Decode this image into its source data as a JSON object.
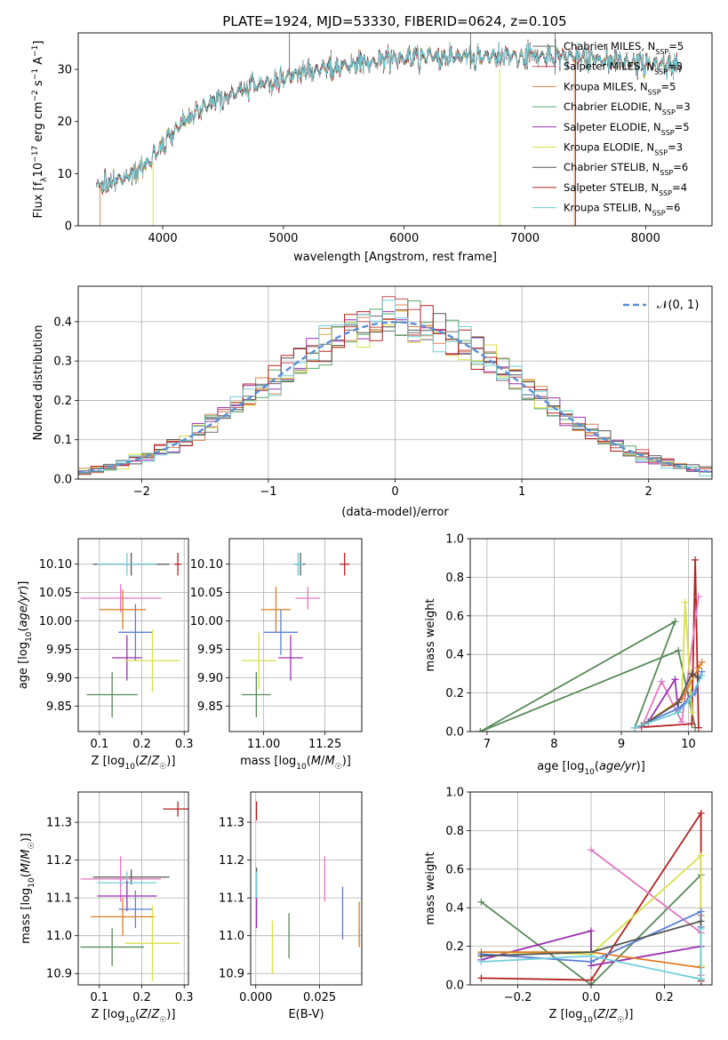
{
  "figure_title": "PLATE=1924, MJD=53330, FIBERID=0624, z=0.105",
  "colors": {
    "Chabrier MILES": "#6a6a6a",
    "Salpeter MILES": "#c44e52",
    "Kroupa MILES": "#dd8452",
    "Chabrier ELODIE": "#55a868",
    "Salpeter ELODIE": "#9b30b0",
    "Kroupa ELODIE": "#d8e04a",
    "Chabrier STELIB": "#555555",
    "Salpeter STELIB": "#b22222",
    "Kroupa STELIB": "#6fcfd8",
    "extra_pink": "#e377c2",
    "extra_blue": "#5b7fd6",
    "extra_orange": "#e07b20",
    "extra_green": "#5a8a5a",
    "normal_curve": "#5b8fd6"
  },
  "chart_data": [
    {
      "id": "spectrum",
      "type": "line",
      "title": "PLATE=1924, MJD=53330, FIBERID=0624, z=0.105",
      "xlabel": "wavelength [Angstrom, rest frame]",
      "ylabel": "Flux [f_λ 10^-17 erg cm^-2 s^-1 A^-1]",
      "xlim": [
        3300,
        8550
      ],
      "ylim": [
        0,
        37
      ],
      "xticks": [
        4000,
        5000,
        6000,
        7000,
        8000
      ],
      "yticks": [
        0,
        10,
        20,
        30
      ],
      "grid": false,
      "legend_position": "top-right",
      "legend": [
        {
          "label": "Chabrier MILES, N",
          "sub": "SSP",
          "suffix": "=5"
        },
        {
          "label": "Salpeter MILES, N",
          "sub": "SSP",
          "suffix": "=3"
        },
        {
          "label": "Kroupa MILES, N",
          "sub": "SSP",
          "suffix": "=5"
        },
        {
          "label": "Chabrier ELODIE, N",
          "sub": "SSP",
          "suffix": "=3"
        },
        {
          "label": "Salpeter ELODIE, N",
          "sub": "SSP",
          "suffix": "=5"
        },
        {
          "label": "Kroupa ELODIE, N",
          "sub": "SSP",
          "suffix": "=3"
        },
        {
          "label": "Chabrier STELIB, N",
          "sub": "SSP",
          "suffix": "=6"
        },
        {
          "label": "Salpeter STELIB, N",
          "sub": "SSP",
          "suffix": "=4"
        },
        {
          "label": "Kroupa STELIB, N",
          "sub": "SSP",
          "suffix": "=6"
        }
      ],
      "continuum": {
        "x": [
          3450,
          3600,
          3800,
          3900,
          4000,
          4100,
          4200,
          4400,
          4600,
          4800,
          5000,
          5200,
          5400,
          5600,
          5800,
          6000,
          6200,
          6400,
          6600,
          6800,
          7000,
          7200,
          7400,
          7600,
          7800,
          8000,
          8200,
          8300
        ],
        "y": [
          7.5,
          8.5,
          10.5,
          12.5,
          15.5,
          18.5,
          20.5,
          23.5,
          25.5,
          27,
          28.5,
          29.5,
          30.5,
          31,
          31.5,
          32,
          32.5,
          32.5,
          32.5,
          32.5,
          32.5,
          32.5,
          32.5,
          32,
          31.5,
          31,
          31,
          30.5
        ]
      },
      "spikes": [
        {
          "x": 3480,
          "from": 0,
          "to": 8,
          "series": 2
        },
        {
          "x": 3920,
          "from": 0,
          "to": 12,
          "series": 5
        },
        {
          "x": 5050,
          "from": 29,
          "to": 37,
          "series": 0
        },
        {
          "x": 6550,
          "from": 30,
          "to": 37,
          "series": 0
        },
        {
          "x": 6790,
          "from": 0,
          "to": 30,
          "series": 5
        },
        {
          "x": 7250,
          "from": 29,
          "to": 37,
          "series": 0
        },
        {
          "x": 7410,
          "from": 0,
          "to": 32,
          "series": 2
        },
        {
          "x": 7420,
          "from": 0,
          "to": 32,
          "series": 7
        }
      ]
    },
    {
      "id": "residuals",
      "type": "histogram",
      "xlabel": "(data-model)/error",
      "ylabel": "Normed distribution",
      "xlim": [
        -2.5,
        2.5
      ],
      "ylim": [
        0,
        0.49
      ],
      "xticks": [
        -2,
        -1,
        0,
        1,
        2
      ],
      "yticks": [
        0.0,
        0.1,
        0.2,
        0.3,
        0.4
      ],
      "grid": true,
      "bins": 50,
      "legend_position": "top-right",
      "legend": [
        {
          "label": "𝒩(0, 1)"
        }
      ],
      "curve": "standard normal N(0,1)"
    },
    {
      "id": "age_vs_Z",
      "type": "errorbar",
      "xlabel": "Z [log10(Z/Z☉)]",
      "ylabel": "age  [log10(age/yr)]",
      "xlim": [
        0.05,
        0.31
      ],
      "ylim": [
        9.805,
        10.145
      ],
      "xticks": [
        0.1,
        0.2,
        0.3
      ],
      "yticks": [
        9.85,
        9.9,
        9.95,
        10.0,
        10.05,
        10.1
      ],
      "grid": true,
      "points": [
        {
          "x": 0.175,
          "y": 10.1,
          "xerr": 0.09,
          "yerr": 0.02,
          "color": "#555555"
        },
        {
          "x": 0.285,
          "y": 10.1,
          "xerr": 0.008,
          "yerr": 0.02,
          "color": "#b22222"
        },
        {
          "x": 0.165,
          "y": 10.1,
          "xerr": 0.07,
          "yerr": 0.02,
          "color": "#6fcfd8"
        },
        {
          "x": 0.15,
          "y": 10.04,
          "xerr": 0.095,
          "yerr": 0.025,
          "color": "#e377c2"
        },
        {
          "x": 0.155,
          "y": 10.02,
          "xerr": 0.055,
          "yerr": 0.035,
          "color": "#e07b20"
        },
        {
          "x": 0.185,
          "y": 9.98,
          "xerr": 0.04,
          "yerr": 0.05,
          "color": "#5b7fd6"
        },
        {
          "x": 0.165,
          "y": 9.935,
          "xerr": 0.035,
          "yerr": 0.04,
          "color": "#9b30b0"
        },
        {
          "x": 0.225,
          "y": 9.93,
          "xerr": 0.065,
          "yerr": 0.055,
          "color": "#d8e04a"
        },
        {
          "x": 0.13,
          "y": 9.87,
          "xerr": 0.06,
          "yerr": 0.04,
          "color": "#5a8a5a"
        }
      ]
    },
    {
      "id": "age_vs_mass",
      "type": "errorbar",
      "xlabel": "mass [log10(M/M☉)]",
      "ylabel": "",
      "xlim": [
        10.86,
        11.4
      ],
      "ylim": [
        9.805,
        10.145
      ],
      "xticks": [
        11.0,
        11.25
      ],
      "yticks": [
        9.85,
        9.9,
        9.95,
        10.0,
        10.05,
        10.1
      ],
      "grid": true,
      "points": [
        {
          "x": 11.15,
          "y": 10.1,
          "xerr": 0.02,
          "yerr": 0.02,
          "color": "#555555"
        },
        {
          "x": 11.33,
          "y": 10.1,
          "xerr": 0.02,
          "yerr": 0.02,
          "color": "#b22222"
        },
        {
          "x": 11.14,
          "y": 10.1,
          "xerr": 0.02,
          "yerr": 0.02,
          "color": "#6fcfd8"
        },
        {
          "x": 11.18,
          "y": 10.04,
          "xerr": 0.05,
          "yerr": 0.02,
          "color": "#e377c2"
        },
        {
          "x": 11.05,
          "y": 10.02,
          "xerr": 0.06,
          "yerr": 0.04,
          "color": "#e07b20"
        },
        {
          "x": 11.07,
          "y": 9.98,
          "xerr": 0.07,
          "yerr": 0.04,
          "color": "#5b7fd6"
        },
        {
          "x": 11.11,
          "y": 9.935,
          "xerr": 0.05,
          "yerr": 0.04,
          "color": "#9b30b0"
        },
        {
          "x": 10.98,
          "y": 9.93,
          "xerr": 0.07,
          "yerr": 0.05,
          "color": "#d8e04a"
        },
        {
          "x": 10.97,
          "y": 9.87,
          "xerr": 0.06,
          "yerr": 0.04,
          "color": "#5a8a5a"
        }
      ]
    },
    {
      "id": "massweight_vs_age",
      "type": "line",
      "xlabel": "age  [log10(age/yr)]",
      "ylabel": "mass weight",
      "xlim": [
        6.75,
        10.35
      ],
      "ylim": [
        0,
        1.0
      ],
      "xticks": [
        7,
        8,
        9,
        10
      ],
      "yticks": [
        0.0,
        0.2,
        0.4,
        0.6,
        0.8,
        1.0
      ],
      "grid": true,
      "series": [
        {
          "color": "#5a8a5a",
          "x": [
            9.2,
            9.8,
            6.9,
            9.85,
            10.1
          ],
          "y": [
            0.02,
            0.57,
            0.0,
            0.42,
            0.02
          ]
        },
        {
          "color": "#b22222",
          "x": [
            9.2,
            10.05,
            10.1,
            10.15
          ],
          "y": [
            0.02,
            0.04,
            0.89,
            0.02
          ]
        },
        {
          "color": "#e377c2",
          "x": [
            9.3,
            9.6,
            9.9,
            10.15
          ],
          "y": [
            0.02,
            0.26,
            0.05,
            0.7
          ]
        },
        {
          "color": "#9b30b0",
          "x": [
            9.4,
            9.8,
            9.85,
            10.05
          ],
          "y": [
            0.05,
            0.27,
            0.1,
            0.2
          ]
        },
        {
          "color": "#d8e04a",
          "x": [
            9.3,
            9.9,
            9.95,
            10.05
          ],
          "y": [
            0.03,
            0.17,
            0.67,
            0.1
          ]
        },
        {
          "color": "#e07b20",
          "x": [
            9.4,
            9.9,
            10.15,
            10.2
          ],
          "y": [
            0.05,
            0.17,
            0.33,
            0.36
          ]
        },
        {
          "color": "#5b7fd6",
          "x": [
            9.4,
            9.85,
            10.1,
            10.2
          ],
          "y": [
            0.05,
            0.12,
            0.2,
            0.31
          ]
        },
        {
          "color": "#555555",
          "x": [
            9.3,
            9.85,
            10.05,
            10.15
          ],
          "y": [
            0.03,
            0.15,
            0.3,
            0.28
          ]
        },
        {
          "color": "#6fcfd8",
          "x": [
            9.2,
            9.85,
            10.0,
            10.2
          ],
          "y": [
            0.02,
            0.1,
            0.16,
            0.29
          ]
        }
      ]
    },
    {
      "id": "mass_vs_Z",
      "type": "errorbar",
      "xlabel": "Z [log10(Z/Z☉)]",
      "ylabel": "mass [log10(M/M☉)]",
      "xlim": [
        0.05,
        0.31
      ],
      "ylim": [
        10.87,
        11.38
      ],
      "xticks": [
        0.1,
        0.2,
        0.3
      ],
      "yticks": [
        10.9,
        11.0,
        11.1,
        11.2,
        11.3
      ],
      "grid": true,
      "points": [
        {
          "x": 0.285,
          "y": 11.335,
          "xerr": 0.035,
          "yerr": 0.02,
          "color": "#b22222"
        },
        {
          "x": 0.175,
          "y": 11.155,
          "xerr": 0.09,
          "yerr": 0.02,
          "color": "#555555"
        },
        {
          "x": 0.15,
          "y": 11.15,
          "xerr": 0.095,
          "yerr": 0.06,
          "color": "#e377c2"
        },
        {
          "x": 0.165,
          "y": 11.14,
          "xerr": 0.07,
          "yerr": 0.03,
          "color": "#6fcfd8"
        },
        {
          "x": 0.165,
          "y": 11.105,
          "xerr": 0.07,
          "yerr": 0.04,
          "color": "#9b30b0"
        },
        {
          "x": 0.185,
          "y": 11.07,
          "xerr": 0.04,
          "yerr": 0.05,
          "color": "#5b7fd6"
        },
        {
          "x": 0.155,
          "y": 11.05,
          "xerr": 0.075,
          "yerr": 0.05,
          "color": "#e07b20"
        },
        {
          "x": 0.225,
          "y": 10.98,
          "xerr": 0.065,
          "yerr": 0.1,
          "color": "#d8e04a"
        },
        {
          "x": 0.13,
          "y": 10.97,
          "xerr": 0.075,
          "yerr": 0.05,
          "color": "#5a8a5a"
        }
      ]
    },
    {
      "id": "mass_vs_ebv",
      "type": "errorbar",
      "xlabel": "E(B-V)",
      "ylabel": "",
      "xlim": [
        -0.002,
        0.0415
      ],
      "ylim": [
        10.87,
        11.38
      ],
      "xticks": [
        0.0,
        0.025
      ],
      "yticks": [
        10.9,
        11.0,
        11.1,
        11.2,
        11.3
      ],
      "grid": true,
      "points": [
        {
          "x": 0.0003,
          "y": 11.33,
          "yerr": 0.025,
          "color": "#b22222"
        },
        {
          "x": 0.0003,
          "y": 11.14,
          "yerr": 0.04,
          "color": "#555555"
        },
        {
          "x": 0.0003,
          "y": 11.1,
          "yerr": 0.07,
          "color": "#6fcfd8"
        },
        {
          "x": 0.0003,
          "y": 11.06,
          "yerr": 0.04,
          "color": "#9b30b0"
        },
        {
          "x": 0.0065,
          "y": 10.97,
          "yerr": 0.07,
          "color": "#d8e04a"
        },
        {
          "x": 0.013,
          "y": 11.0,
          "yerr": 0.06,
          "color": "#5a8a5a"
        },
        {
          "x": 0.027,
          "y": 11.15,
          "yerr": 0.06,
          "color": "#e377c2"
        },
        {
          "x": 0.034,
          "y": 11.06,
          "yerr": 0.07,
          "color": "#5b7fd6"
        },
        {
          "x": 0.0405,
          "y": 11.03,
          "yerr": 0.06,
          "color": "#e07b20"
        }
      ]
    },
    {
      "id": "massweight_vs_Z",
      "type": "line",
      "xlabel": "Z [log10(Z/Z☉)]",
      "ylabel": "mass weight",
      "xlim": [
        -0.33,
        0.33
      ],
      "ylim": [
        0,
        1.0
      ],
      "xticks": [
        -0.2,
        0.0,
        0.2
      ],
      "yticks": [
        0.0,
        0.2,
        0.4,
        0.6,
        0.8,
        1.0
      ],
      "grid": true,
      "series": [
        {
          "color": "#5a8a5a",
          "x": [
            -0.3,
            0.0,
            0.3
          ],
          "y": [
            0.43,
            0.0,
            0.57
          ]
        },
        {
          "color": "#b22222",
          "x": [
            -0.3,
            0.0,
            0.3,
            0.3
          ],
          "y": [
            0.035,
            0.025,
            0.89,
            0.02
          ]
        },
        {
          "color": "#e377c2",
          "x": [
            0.0,
            0.3,
            0.3
          ],
          "y": [
            0.7,
            0.27,
            0.05
          ]
        },
        {
          "color": "#9b30b0",
          "x": [
            -0.3,
            0.0,
            0.0,
            0.3
          ],
          "y": [
            0.13,
            0.28,
            0.1,
            0.2
          ]
        },
        {
          "color": "#d8e04a",
          "x": [
            -0.3,
            0.0,
            0.3,
            0.3
          ],
          "y": [
            0.17,
            0.16,
            0.67,
            0.1
          ]
        },
        {
          "color": "#e07b20",
          "x": [
            -0.3,
            0.0,
            0.3,
            0.3
          ],
          "y": [
            0.17,
            0.17,
            0.09,
            0.36
          ]
        },
        {
          "color": "#5b7fd6",
          "x": [
            -0.3,
            0.0,
            0.3,
            0.3
          ],
          "y": [
            0.16,
            0.12,
            0.38,
            0.3
          ]
        },
        {
          "color": "#555555",
          "x": [
            -0.3,
            0.0,
            0.3,
            0.3
          ],
          "y": [
            0.15,
            0.17,
            0.33,
            0.03
          ]
        },
        {
          "color": "#6fcfd8",
          "x": [
            -0.3,
            0.0,
            0.3,
            0.3
          ],
          "y": [
            0.12,
            0.15,
            0.03,
            0.29
          ]
        }
      ]
    }
  ]
}
